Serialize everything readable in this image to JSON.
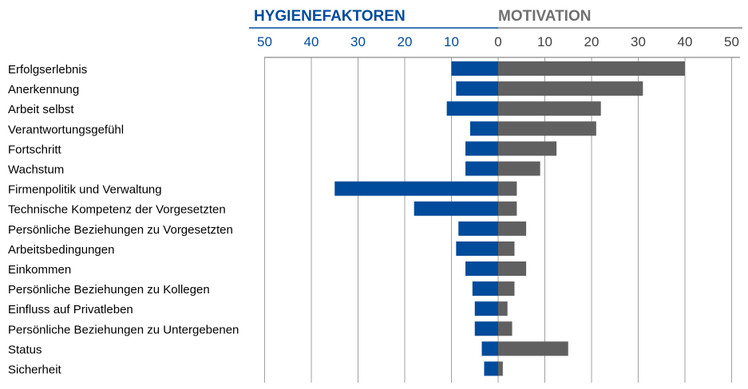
{
  "chart_data": {
    "type": "bar",
    "orientation": "horizontal-diverging",
    "headers": {
      "left": "HYGIENEFAKTOREN",
      "right": "MOTIVATION"
    },
    "left_ticks": [
      "50",
      "40",
      "30",
      "20",
      "10"
    ],
    "center_tick": "0",
    "right_ticks": [
      "10",
      "20",
      "30",
      "40",
      "50"
    ],
    "xlim": [
      0,
      50
    ],
    "grid": true,
    "categories": [
      "Erfolgserlebnis",
      "Anerkennung",
      "Arbeit selbst",
      "Verantwortungsgefühl",
      "Fortschritt",
      "Wachstum",
      "Firmenpolitik und Verwaltung",
      "Technische Kompetenz der Vorgesetzten",
      "Persönliche Beziehungen zu Vorgesetzten",
      "Arbeitsbedingungen",
      "Einkommen",
      "Persönliche Beziehungen zu Kollegen",
      "Einfluss auf Privatleben",
      "Persönliche Beziehungen zu Untergebenen",
      "Status",
      "Sicherheit"
    ],
    "series": [
      {
        "name": "HYGIENEFAKTOREN",
        "color": "#004b9b",
        "values": [
          10,
          9,
          11,
          6,
          7,
          7,
          35,
          18,
          8.5,
          9,
          7,
          5.5,
          5,
          5,
          3.5,
          3
        ]
      },
      {
        "name": "MOTIVATION",
        "color": "#606060",
        "values": [
          40,
          31,
          22,
          21,
          12.5,
          9,
          4,
          4,
          6,
          3.5,
          6,
          3.5,
          2,
          3,
          15,
          1
        ]
      }
    ]
  }
}
